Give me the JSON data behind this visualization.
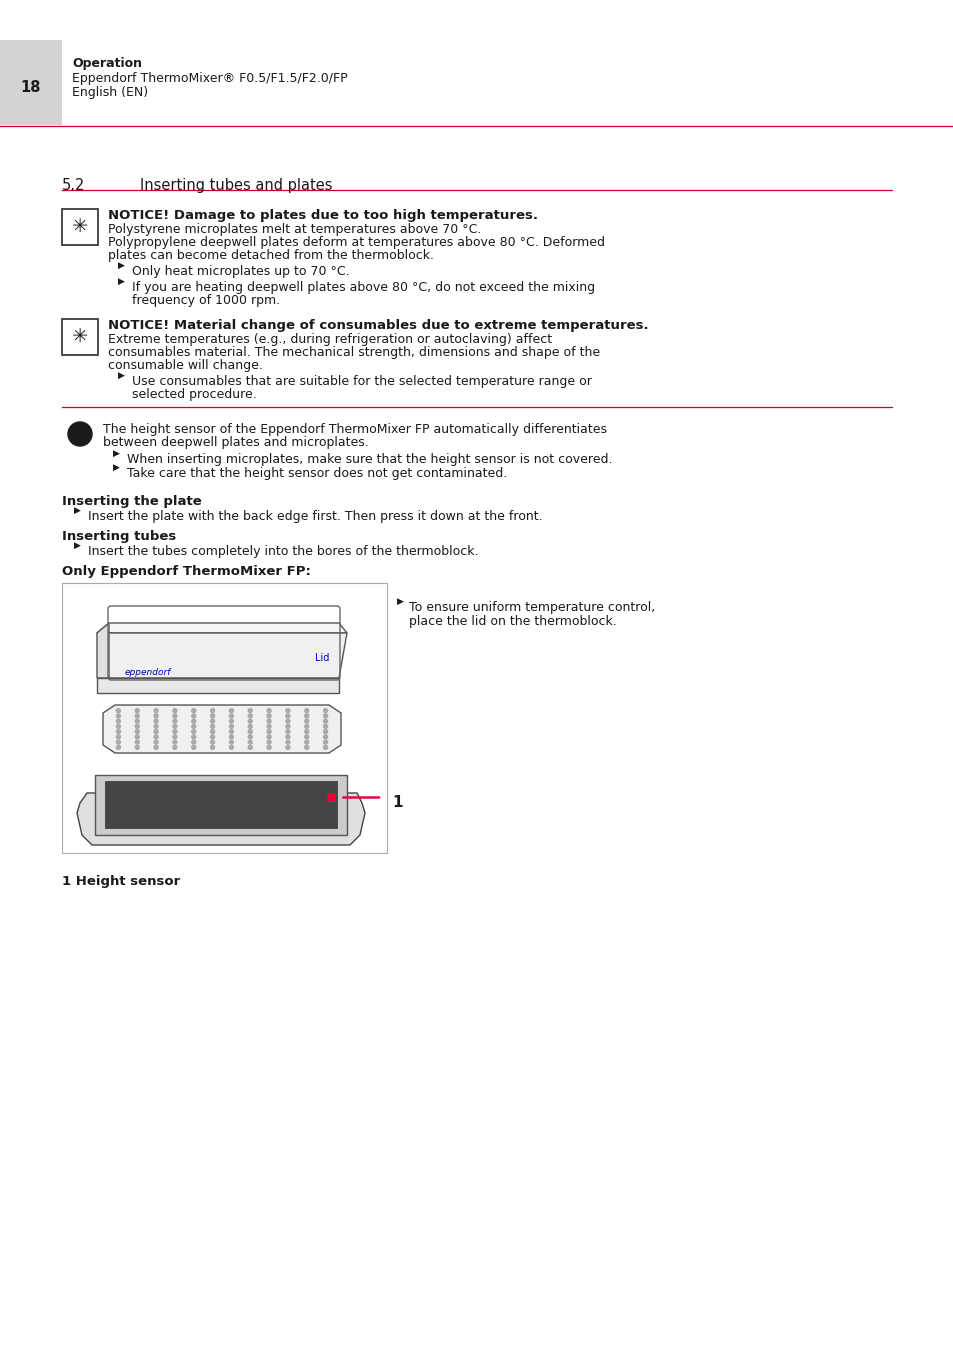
{
  "page_bg": "#ffffff",
  "header_bg": "#d3d3d3",
  "header_number": "18",
  "header_section": "Operation",
  "header_line1": "Eppendorf ThermoMixer® F0.5/F1.5/F2.0/FP",
  "header_line2": "English (EN)",
  "section_number": "5.2",
  "section_title": "Inserting tubes and plates",
  "divider_color": "#cc0033",
  "notice1_bold": "NOTICE! Damage to plates due to too high temperatures.",
  "notice1_text1": "Polystyrene microplates melt at temperatures above 70 °C.",
  "notice1_text2": "Polypropylene deepwell plates deform at temperatures above 80 °C. Deformed",
  "notice1_text3": "plates can become detached from the thermoblock.",
  "notice1_bullet1": "Only heat microplates up to 70 °C.",
  "notice1_bullet2a": "If you are heating deepwell plates above 80 °C, do not exceed the mixing",
  "notice1_bullet2b": "frequency of 1000 rpm.",
  "notice2_bold": "NOTICE! Material change of consumables due to extreme temperatures.",
  "notice2_text1": "Extreme temperatures (e.g., during refrigeration or autoclaving) affect",
  "notice2_text2": "consumables material. The mechanical strength, dimensions and shape of the",
  "notice2_text3": "consumable will change.",
  "notice2_bullet1a": "Use consumables that are suitable for the selected temperature range or",
  "notice2_bullet1b": "selected procedure.",
  "info_text1": "The height sensor of the Eppendorf ThermoMixer FP automatically differentiates",
  "info_text2": "between deepwell plates and microplates.",
  "info_bullet1": "When inserting microplates, make sure that the height sensor is not covered.",
  "info_bullet2": "Take care that the height sensor does not get contaminated.",
  "insert_plate_title": "Inserting the plate",
  "insert_plate_text": "Insert the plate with the back edge first. Then press it down at the front.",
  "insert_tubes_title": "Inserting tubes",
  "insert_tubes_text": "Insert the tubes completely into the bores of the thermoblock.",
  "only_fp_title": "Only Eppendorf ThermoMixer FP:",
  "fp_bullet1": "To ensure uniform temperature control,",
  "fp_bullet2": "place the lid on the thermoblock.",
  "caption": "1 Height sensor",
  "text_color": "#1a1a1a",
  "border_color": "#333333",
  "red_marker": "#e8003d",
  "blue_label": "#0000cc"
}
